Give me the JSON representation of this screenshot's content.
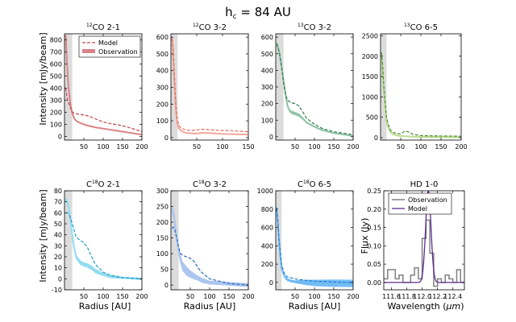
{
  "figure": {
    "title_main": "h",
    "title_sub": "c",
    "title_rest": " = 84 AU"
  },
  "labels": {
    "ylabel_intensity": "Intensity [mJy/beam]",
    "ylabel_flux": "Flux (Jy)",
    "xlabel_radius": "Radius [AU]",
    "xlabel_wavelength_pre": "Wavelength (",
    "xlabel_wavelength_unit": "μm",
    "xlabel_wavelength_post": ")"
  },
  "legend_top": {
    "model": "Model",
    "observation": "Observation"
  },
  "legend_hd": {
    "observation": "Observation",
    "model": "Model"
  },
  "chart_data": [
    {
      "id": "co21",
      "type": "line",
      "title_sup": "12",
      "title_mol": "CO 2-1",
      "color": "#c0464c",
      "band": "#d98488",
      "xlim": [
        0,
        200
      ],
      "ylim": [
        -30,
        850
      ],
      "xticks": [
        50,
        100,
        150,
        200
      ],
      "yticks": [
        0,
        100,
        200,
        300,
        400,
        500,
        600,
        700,
        800
      ],
      "shade": [
        0,
        20
      ],
      "model": {
        "x": [
          3,
          8,
          15,
          20,
          25,
          35,
          45,
          55,
          65,
          80,
          100,
          120,
          140,
          160,
          180,
          200
        ],
        "y": [
          400,
          300,
          240,
          205,
          190,
          185,
          180,
          175,
          165,
          145,
          120,
          105,
          95,
          80,
          60,
          40
        ]
      },
      "obs": {
        "x": [
          3,
          6,
          10,
          15,
          20,
          25,
          30,
          40,
          50,
          60,
          80,
          100,
          120,
          140,
          160,
          180,
          200
        ],
        "y": [
          840,
          640,
          420,
          270,
          190,
          150,
          130,
          112,
          100,
          90,
          75,
          65,
          55,
          45,
          35,
          25,
          15
        ],
        "err": [
          10,
          10,
          10,
          8,
          6,
          5,
          5,
          5,
          4,
          4,
          4,
          3,
          3,
          3,
          3,
          3,
          3
        ]
      }
    },
    {
      "id": "co32",
      "type": "line",
      "title_sup": "12",
      "title_mol": "CO 3-2",
      "color": "#e06a5a",
      "band": "#f2a79a",
      "xlim": [
        0,
        150
      ],
      "ylim": [
        -15,
        620
      ],
      "xticks": [
        50,
        100,
        150
      ],
      "yticks": [
        0,
        100,
        200,
        300,
        400,
        500,
        600
      ],
      "shade": [
        0,
        13
      ],
      "model": {
        "x": [
          2,
          4,
          6,
          8,
          10,
          13,
          16,
          20,
          30,
          40,
          50,
          60,
          70,
          80,
          100,
          120,
          150
        ],
        "y": [
          590,
          530,
          420,
          290,
          180,
          100,
          70,
          55,
          45,
          42,
          45,
          50,
          48,
          45,
          42,
          40,
          35
        ]
      },
      "obs": {
        "x": [
          2,
          4,
          6,
          8,
          10,
          12,
          15,
          20,
          25,
          30,
          40,
          50,
          60,
          80,
          100,
          120,
          150
        ],
        "y": [
          600,
          520,
          380,
          250,
          150,
          90,
          55,
          40,
          32,
          28,
          25,
          24,
          28,
          26,
          22,
          20,
          18
        ],
        "err": [
          12,
          12,
          10,
          10,
          8,
          6,
          5,
          4,
          4,
          4,
          4,
          4,
          4,
          4,
          3,
          3,
          3
        ]
      }
    },
    {
      "id": "13co32",
      "type": "line",
      "title_sup": "13",
      "title_mol": "CO 3-2",
      "color": "#2e7a4f",
      "band": "#8fc3a6",
      "xlim": [
        0,
        200
      ],
      "ylim": [
        -20,
        620
      ],
      "xticks": [
        50,
        100,
        150,
        200
      ],
      "yticks": [
        0,
        100,
        200,
        300,
        400,
        500,
        600
      ],
      "shade": [
        0,
        20
      ],
      "model": {
        "x": [
          3,
          10,
          15,
          20,
          25,
          30,
          40,
          50,
          60,
          70,
          80,
          100,
          120,
          150,
          200
        ],
        "y": [
          560,
          500,
          420,
          330,
          260,
          220,
          205,
          200,
          185,
          150,
          110,
          75,
          50,
          30,
          12
        ]
      },
      "obs": {
        "x": [
          3,
          8,
          15,
          20,
          25,
          30,
          35,
          40,
          50,
          60,
          70,
          80,
          100,
          120,
          150,
          200
        ],
        "y": [
          560,
          520,
          430,
          340,
          260,
          190,
          160,
          148,
          140,
          130,
          110,
          85,
          60,
          40,
          22,
          5
        ],
        "err": [
          15,
          15,
          12,
          10,
          10,
          10,
          10,
          10,
          10,
          10,
          8,
          6,
          5,
          4,
          3,
          2
        ]
      }
    },
    {
      "id": "13co65",
      "type": "line",
      "title_sup": "13",
      "title_mol": "CO 6-5",
      "color": "#4f8c3a",
      "band": "#b9dc8c",
      "xlim": [
        0,
        200
      ],
      "ylim": [
        -60,
        2550
      ],
      "xticks": [
        50,
        100,
        150,
        200
      ],
      "yticks": [
        0,
        500,
        1000,
        1500,
        2000,
        2500
      ],
      "shade": [
        0,
        15
      ],
      "model": {
        "x": [
          2,
          5,
          8,
          12,
          15,
          20,
          25,
          30,
          40,
          50,
          60,
          70,
          80,
          100,
          150,
          200
        ],
        "y": [
          2100,
          1800,
          1300,
          800,
          480,
          300,
          180,
          130,
          100,
          90,
          160,
          140,
          80,
          50,
          40,
          35
        ]
      },
      "obs": {
        "x": [
          2,
          5,
          8,
          12,
          15,
          20,
          25,
          30,
          40,
          50,
          60,
          80,
          100,
          150,
          200
        ],
        "y": [
          2050,
          1700,
          1150,
          700,
          400,
          220,
          130,
          85,
          55,
          40,
          35,
          25,
          20,
          15,
          10
        ],
        "err": [
          30,
          30,
          30,
          25,
          20,
          15,
          12,
          10,
          10,
          10,
          10,
          15,
          20,
          20,
          20
        ]
      }
    },
    {
      "id": "c18o21",
      "type": "line",
      "title_sup": "18",
      "title_mol": "O 2-1",
      "title_pre": "C",
      "color": "#1f9dc4",
      "band": "#8fdcf0",
      "xlim": [
        0,
        200
      ],
      "ylim": [
        -10,
        80
      ],
      "xticks": [
        50,
        100,
        150,
        200
      ],
      "yticks": [
        -10,
        0,
        10,
        20,
        30,
        40,
        50,
        60,
        70,
        80
      ],
      "shade": [
        0,
        20
      ],
      "model": {
        "x": [
          3,
          8,
          12,
          16,
          20,
          25,
          30,
          40,
          50,
          60,
          70,
          80,
          100,
          120,
          150,
          200
        ],
        "y": [
          60,
          60,
          58,
          55,
          50,
          44,
          38,
          35,
          33,
          28,
          20,
          13,
          6,
          3,
          1,
          0
        ]
      },
      "obs": {
        "x": [
          3,
          8,
          12,
          16,
          20,
          25,
          30,
          40,
          50,
          60,
          70,
          80,
          100,
          120,
          150,
          200
        ],
        "y": [
          72,
          69,
          62,
          52,
          40,
          28,
          20,
          15,
          13,
          12,
          10,
          7,
          4,
          2,
          1,
          0
        ],
        "err": [
          2,
          2,
          2,
          2,
          2,
          2,
          2,
          2,
          2,
          2,
          2,
          2,
          1.5,
          1.5,
          1,
          1
        ]
      }
    },
    {
      "id": "c18o32",
      "type": "line",
      "title_sup": "18",
      "title_mol": "O 3-2",
      "title_pre": "C",
      "color": "#2b6cc4",
      "band": "#a9c4ee",
      "xlim": [
        0,
        200
      ],
      "ylim": [
        -15,
        300
      ],
      "xticks": [
        50,
        100,
        150,
        200
      ],
      "yticks": [
        0,
        50,
        100,
        150,
        200,
        250,
        300
      ],
      "shade": [
        0,
        20
      ],
      "model": {
        "x": [
          3,
          6,
          10,
          15,
          20,
          25,
          30,
          40,
          50,
          60,
          70,
          80,
          100,
          150,
          200
        ],
        "y": [
          180,
          185,
          175,
          150,
          120,
          100,
          95,
          90,
          85,
          75,
          55,
          40,
          20,
          5,
          0
        ]
      },
      "obs": {
        "x": [
          3,
          6,
          10,
          15,
          20,
          25,
          30,
          40,
          50,
          60,
          70,
          80,
          100,
          150,
          200
        ],
        "y": [
          240,
          230,
          200,
          150,
          110,
          80,
          60,
          45,
          35,
          28,
          22,
          15,
          8,
          4,
          0
        ],
        "err": [
          8,
          15,
          20,
          20,
          15,
          15,
          15,
          15,
          12,
          10,
          8,
          8,
          6,
          6,
          6
        ]
      }
    },
    {
      "id": "c18o65",
      "type": "line",
      "title_sup": "18",
      "title_mol": "O 6-5",
      "title_pre": "C",
      "color": "#1f7fd1",
      "band": "#6fb8f2",
      "xlim": [
        0,
        200
      ],
      "ylim": [
        -80,
        1000
      ],
      "xticks": [
        50,
        100,
        150,
        200
      ],
      "yticks": [
        0,
        200,
        400,
        600,
        800,
        1000
      ],
      "shade": [
        0,
        15
      ],
      "model": {
        "x": [
          2,
          5,
          8,
          12,
          15,
          20,
          25,
          30,
          40,
          50,
          60,
          70,
          80,
          100,
          150,
          200
        ],
        "y": [
          800,
          700,
          500,
          330,
          200,
          120,
          80,
          60,
          50,
          40,
          30,
          30,
          20,
          15,
          5,
          0
        ]
      },
      "obs": {
        "x": [
          2,
          5,
          8,
          12,
          15,
          20,
          25,
          30,
          40,
          50,
          60,
          80,
          100,
          150,
          200
        ],
        "y": [
          820,
          690,
          470,
          280,
          160,
          90,
          50,
          30,
          15,
          8,
          5,
          0,
          -5,
          -8,
          -10
        ],
        "err": [
          25,
          25,
          25,
          20,
          20,
          15,
          15,
          15,
          15,
          15,
          20,
          30,
          35,
          40,
          40
        ]
      }
    },
    {
      "id": "hd10",
      "type": "line",
      "title_mol": "HD 1-0",
      "color_obs": "#808080",
      "color_model": "#5c2d91",
      "xlim": [
        111.5,
        112.55
      ],
      "ylim": [
        -0.02,
        0.25
      ],
      "xticks": [
        111.6,
        111.8,
        112.0,
        112.2,
        112.4
      ],
      "yticks": [
        0.0,
        0.05,
        0.1,
        0.15,
        0.2,
        0.25
      ],
      "xticklabels": [
        "111.6",
        "111.8",
        "112.0",
        "112.2",
        "112.4"
      ],
      "yticklabels": [
        "0.00",
        "0.05",
        "0.10",
        "0.15",
        "0.20",
        "0.25"
      ],
      "obs_steps": {
        "x": [
          111.5,
          111.55,
          111.6,
          111.65,
          111.7,
          111.75,
          111.8,
          111.85,
          111.9,
          111.95,
          112.0,
          112.05,
          112.1,
          112.15,
          112.2,
          112.25,
          112.3,
          112.35,
          112.4,
          112.45,
          112.5,
          112.55
        ],
        "y": [
          0.01,
          0.035,
          0.035,
          0.01,
          0.02,
          0.0,
          0.0,
          0.02,
          0.04,
          0.01,
          0.12,
          0.17,
          0.08,
          -0.01,
          0.01,
          0.0,
          0.02,
          0.01,
          0.0,
          0.035,
          0.0,
          0.0
        ]
      },
      "model_gauss": {
        "center": 112.08,
        "amp": 0.25,
        "sigma": 0.035,
        "base": 0.0
      }
    }
  ]
}
